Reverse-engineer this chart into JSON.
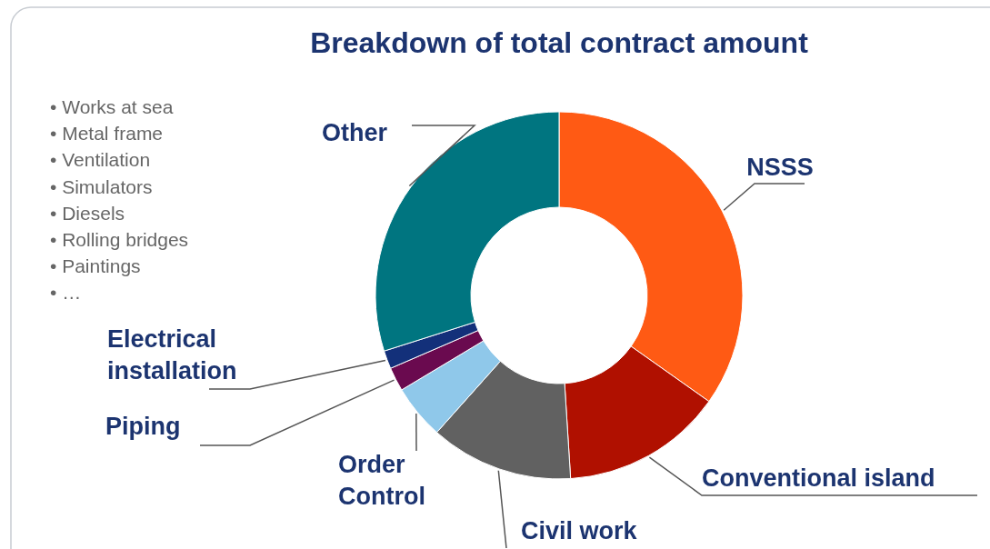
{
  "chart_data": {
    "type": "donut",
    "title": "Breakdown of total contract amount",
    "categories": [
      "NSSS",
      "Conventional island",
      "Civil work",
      "Order Control",
      "Piping",
      "Electrical installation",
      "Other"
    ],
    "values": [
      34.8,
      14.2,
      12.6,
      4.8,
      2.1,
      1.6,
      29.9
    ],
    "colors": [
      "#ff5a14",
      "#b01000",
      "#616161",
      "#8fc8ea",
      "#6a0a4f",
      "#13307a",
      "#007580"
    ],
    "annotations": [
      "• Works at sea",
      "• Metal frame",
      "• Ventilation",
      "• Simulators",
      "• Diesels",
      "• Rolling bridges",
      "• Paintings",
      "• …"
    ]
  }
}
